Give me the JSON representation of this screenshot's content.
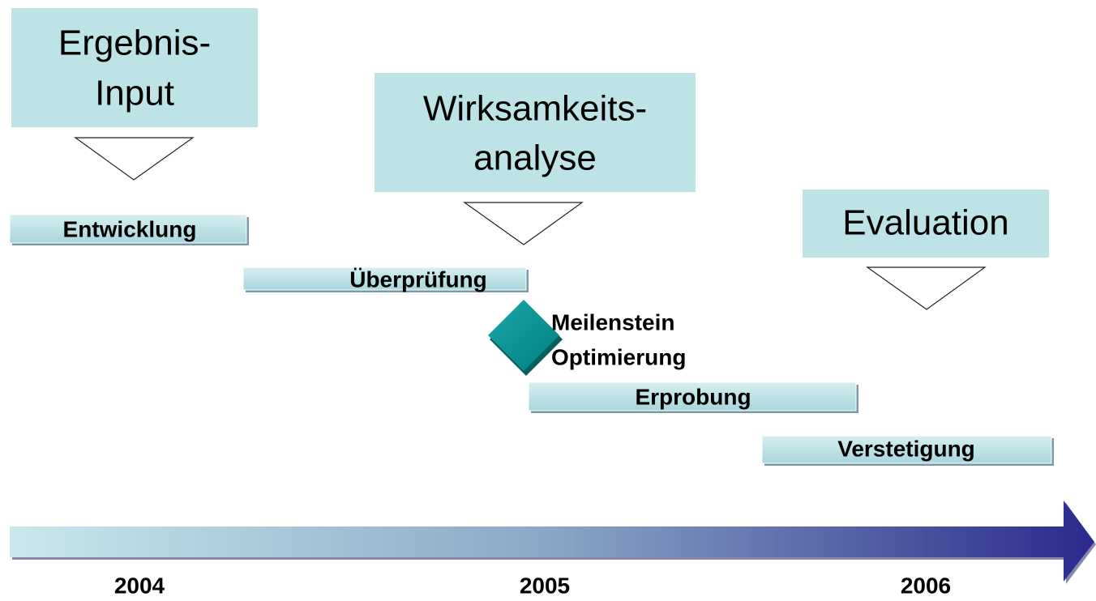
{
  "boxes": [
    {
      "lines": [
        "Ergebnis-",
        "Input"
      ]
    },
    {
      "lines": [
        "Wirksamkeits-",
        "analyse"
      ]
    },
    {
      "lines": [
        "Evaluation"
      ]
    }
  ],
  "bars": [
    {
      "label": "Entwicklung"
    },
    {
      "label": "Überprüfung"
    },
    {
      "label": "Erprobung"
    },
    {
      "label": "Verstetigung"
    }
  ],
  "milestone": {
    "lines": [
      "Meilenstein",
      "Optimierung"
    ]
  },
  "years": [
    "2004",
    "2005",
    "2006"
  ]
}
